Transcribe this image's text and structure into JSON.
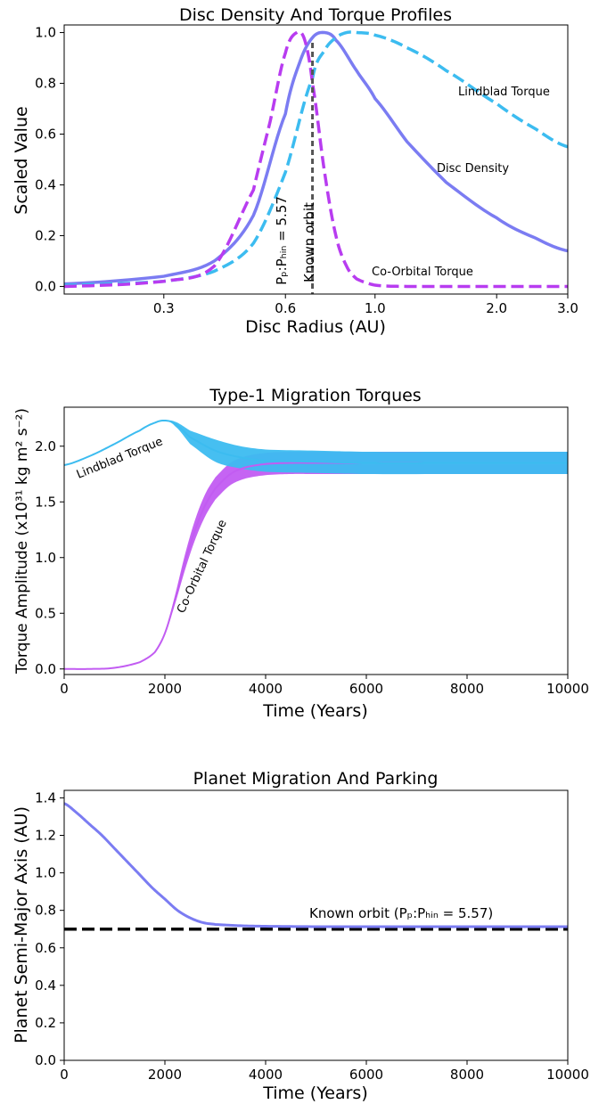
{
  "chart_data": [
    {
      "type": "line",
      "title": "Disc Density And Torque Profiles",
      "xlabel": "Disc Radius (AU)",
      "ylabel": "Scaled Value",
      "xscale": "log",
      "xlim": [
        0.17,
        3.0
      ],
      "ylim": [
        -0.03,
        1.03
      ],
      "xticks": [
        0.3,
        0.6,
        1.0,
        2.0,
        3.0
      ],
      "xtick_labels": [
        "0.3",
        "0.6",
        "1.0",
        "2.0",
        "3.0"
      ],
      "yticks": [
        0.0,
        0.2,
        0.4,
        0.6,
        0.8,
        1.0
      ],
      "ytick_labels": [
        "0.0",
        "0.2",
        "0.4",
        "0.6",
        "0.8",
        "1.0"
      ],
      "grid": false,
      "series": [
        {
          "name": "Disc Density",
          "color": "#7b7cf2",
          "style": "solid",
          "x": [
            0.17,
            0.3,
            0.4,
            0.5,
            0.6,
            0.65,
            0.7,
            0.75,
            0.8,
            0.9,
            1.0,
            1.2,
            1.5,
            2.0,
            2.5,
            3.0
          ],
          "y": [
            0.01,
            0.04,
            0.1,
            0.28,
            0.68,
            0.88,
            0.98,
            1.0,
            0.97,
            0.85,
            0.74,
            0.57,
            0.41,
            0.27,
            0.19,
            0.14
          ]
        },
        {
          "name": "Lindblad Torque",
          "color": "#3cbcf0",
          "style": "dashed",
          "x": [
            0.17,
            0.3,
            0.4,
            0.5,
            0.6,
            0.7,
            0.75,
            0.8,
            0.85,
            0.9,
            1.0,
            1.2,
            1.5,
            2.0,
            2.5,
            3.0
          ],
          "y": [
            0.005,
            0.02,
            0.06,
            0.17,
            0.45,
            0.82,
            0.93,
            0.98,
            1.0,
            1.0,
            0.99,
            0.94,
            0.85,
            0.72,
            0.62,
            0.55
          ]
        },
        {
          "name": "Co-Orbital Torque",
          "color": "#b83cf0",
          "style": "dashed",
          "x": [
            0.17,
            0.3,
            0.4,
            0.5,
            0.55,
            0.6,
            0.64,
            0.67,
            0.7,
            0.75,
            0.8,
            0.85,
            0.9,
            1.0,
            1.2,
            1.5,
            2.0,
            3.0
          ],
          "y": [
            0.0,
            0.02,
            0.08,
            0.38,
            0.65,
            0.92,
            1.0,
            0.97,
            0.8,
            0.45,
            0.2,
            0.08,
            0.03,
            0.005,
            0.0,
            0.0,
            0.0,
            0.0
          ]
        }
      ],
      "vline": {
        "x": 0.7,
        "color": "#555555",
        "labels": [
          "Pₚ:Pₕᵢₙ = 5.57",
          "Known orbit"
        ]
      },
      "annotations": [
        {
          "text": "Lindblad Torque",
          "x": 1.9,
          "y": 0.75
        },
        {
          "text": "Disc Density",
          "x": 1.8,
          "y": 0.45
        },
        {
          "text": "Co-Orbital Torque",
          "x": 1.85,
          "y": 0.05
        }
      ]
    },
    {
      "type": "line",
      "title": "Type-1 Migration Torques",
      "xlabel": "Time (Years)",
      "ylabel": "Torque Amplitude (x10³¹ kg m² s⁻²)",
      "xlim": [
        0,
        10000
      ],
      "ylim": [
        -0.05,
        2.35
      ],
      "xticks": [
        0,
        2000,
        4000,
        6000,
        8000,
        10000
      ],
      "xtick_labels": [
        "0",
        "2000",
        "4000",
        "6000",
        "8000",
        "10000"
      ],
      "yticks": [
        0.0,
        0.5,
        1.0,
        1.5,
        2.0
      ],
      "ytick_labels": [
        "0.0",
        "0.5",
        "1.0",
        "1.5",
        "2.0"
      ],
      "grid": false,
      "series": [
        {
          "name": "Lindblad Torque",
          "color": "#3cbcf0",
          "x": [
            0,
            500,
            1000,
            1500,
            1800,
            2000,
            2200,
            2500,
            3000,
            3500,
            4000,
            5000,
            6000,
            8000,
            10000
          ],
          "y": [
            1.83,
            1.91,
            2.02,
            2.14,
            2.21,
            2.23,
            2.2,
            2.08,
            1.96,
            1.9,
            1.87,
            1.86,
            1.85,
            1.85,
            1.85
          ],
          "band": [
            0,
            0,
            0,
            0,
            0,
            0,
            0.02,
            0.06,
            0.1,
            0.1,
            0.1,
            0.1,
            0.1,
            0.1,
            0.1
          ]
        },
        {
          "name": "Co-Orbital Torque",
          "color": "#c25cf2",
          "x": [
            0,
            500,
            1000,
            1500,
            1800,
            2000,
            2200,
            2400,
            2600,
            2800,
            3000,
            3300,
            3600,
            4000,
            4500,
            5000,
            6000,
            8000,
            10000
          ],
          "y": [
            0.0,
            0.0,
            0.01,
            0.06,
            0.15,
            0.32,
            0.62,
            0.96,
            1.25,
            1.47,
            1.62,
            1.75,
            1.81,
            1.84,
            1.85,
            1.85,
            1.85,
            1.85,
            1.85
          ],
          "band": [
            0,
            0,
            0,
            0,
            0.005,
            0.01,
            0.04,
            0.07,
            0.09,
            0.1,
            0.1,
            0.1,
            0.1,
            0.1,
            0.1,
            0.1,
            0.1,
            0.1,
            0.1
          ]
        }
      ],
      "annotations": [
        {
          "text": "Lindblad Torque",
          "x": 1400,
          "y": 1.97,
          "rotate": -22
        },
        {
          "text": "Co-Orbital Torque",
          "x": 2700,
          "y": 0.9,
          "rotate": -65
        }
      ]
    },
    {
      "type": "line",
      "title": "Planet Migration And Parking",
      "xlabel": "Time (Years)",
      "ylabel": "Planet Semi-Major Axis (AU)",
      "xlim": [
        0,
        10000
      ],
      "ylim": [
        0,
        1.44
      ],
      "xticks": [
        0,
        2000,
        4000,
        6000,
        8000,
        10000
      ],
      "xtick_labels": [
        "0",
        "2000",
        "4000",
        "6000",
        "8000",
        "10000"
      ],
      "yticks": [
        0.0,
        0.2,
        0.4,
        0.6,
        0.8,
        1.0,
        1.2,
        1.4
      ],
      "ytick_labels": [
        "0.0",
        "0.2",
        "0.4",
        "0.6",
        "0.8",
        "1.0",
        "1.2",
        "1.4"
      ],
      "grid": false,
      "series": [
        {
          "name": "Planet Semi-Major Axis",
          "color": "#7b7cf2",
          "x": [
            0,
            250,
            500,
            750,
            1000,
            1250,
            1500,
            1750,
            2000,
            2250,
            2500,
            2750,
            3000,
            3500,
            4000,
            5000,
            6000,
            8000,
            10000
          ],
          "y": [
            1.37,
            1.32,
            1.26,
            1.2,
            1.13,
            1.06,
            0.99,
            0.92,
            0.86,
            0.8,
            0.76,
            0.735,
            0.725,
            0.718,
            0.715,
            0.713,
            0.713,
            0.713,
            0.713
          ]
        }
      ],
      "hline": {
        "y": 0.7,
        "color": "#000000",
        "label": "Known orbit (Pₚ:Pₕᵢₙ = 5.57)"
      }
    }
  ]
}
